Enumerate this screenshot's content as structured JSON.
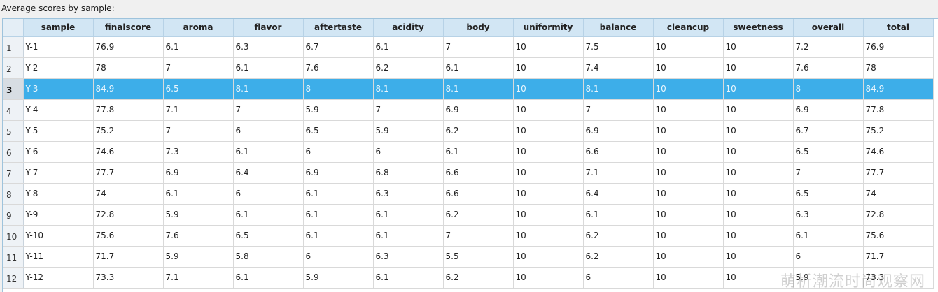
{
  "caption": "Average scores by sample:",
  "colors": {
    "header_bg": "#d2e6f4",
    "selection": "#3daee9",
    "rownum_bg": "#eef2f6"
  },
  "table": {
    "columns": [
      "sample",
      "finalscore",
      "aroma",
      "flavor",
      "aftertaste",
      "acidity",
      "body",
      "uniformity",
      "balance",
      "cleancup",
      "sweetness",
      "overall",
      "total"
    ],
    "selected_row": 3,
    "rows": [
      {
        "num": "1",
        "cells": [
          "Y-1",
          "76.9",
          "6.1",
          "6.3",
          "6.7",
          "6.1",
          "7",
          "10",
          "7.5",
          "10",
          "10",
          "7.2",
          "76.9"
        ]
      },
      {
        "num": "2",
        "cells": [
          "Y-2",
          "78",
          "7",
          "6.1",
          "7.6",
          "6.2",
          "6.1",
          "10",
          "7.4",
          "10",
          "10",
          "7.6",
          "78"
        ]
      },
      {
        "num": "3",
        "cells": [
          "Y-3",
          "84.9",
          "6.5",
          "8.1",
          "8",
          "8.1",
          "8.1",
          "10",
          "8.1",
          "10",
          "10",
          "8",
          "84.9"
        ]
      },
      {
        "num": "4",
        "cells": [
          "Y-4",
          "77.8",
          "7.1",
          "7",
          "5.9",
          "7",
          "6.9",
          "10",
          "7",
          "10",
          "10",
          "6.9",
          "77.8"
        ]
      },
      {
        "num": "5",
        "cells": [
          "Y-5",
          "75.2",
          "7",
          "6",
          "6.5",
          "5.9",
          "6.2",
          "10",
          "6.9",
          "10",
          "10",
          "6.7",
          "75.2"
        ]
      },
      {
        "num": "6",
        "cells": [
          "Y-6",
          "74.6",
          "7.3",
          "6.1",
          "6",
          "6",
          "6.1",
          "10",
          "6.6",
          "10",
          "10",
          "6.5",
          "74.6"
        ]
      },
      {
        "num": "7",
        "cells": [
          "Y-7",
          "77.7",
          "6.9",
          "6.4",
          "6.9",
          "6.8",
          "6.6",
          "10",
          "7.1",
          "10",
          "10",
          "7",
          "77.7"
        ]
      },
      {
        "num": "8",
        "cells": [
          "Y-8",
          "74",
          "6.1",
          "6",
          "6.1",
          "6.3",
          "6.6",
          "10",
          "6.4",
          "10",
          "10",
          "6.5",
          "74"
        ]
      },
      {
        "num": "9",
        "cells": [
          "Y-9",
          "72.8",
          "5.9",
          "6.1",
          "6.1",
          "6.1",
          "6.2",
          "10",
          "6.1",
          "10",
          "10",
          "6.3",
          "72.8"
        ]
      },
      {
        "num": "10",
        "cells": [
          "Y-10",
          "75.6",
          "7.6",
          "6.5",
          "6.1",
          "6.1",
          "7",
          "10",
          "6.2",
          "10",
          "10",
          "6.1",
          "75.6"
        ]
      },
      {
        "num": "11",
        "cells": [
          "Y-11",
          "71.7",
          "5.9",
          "5.8",
          "6",
          "6.3",
          "5.5",
          "10",
          "6.2",
          "10",
          "10",
          "6",
          "71.7"
        ]
      },
      {
        "num": "12",
        "cells": [
          "Y-12",
          "73.3",
          "7.1",
          "6.1",
          "5.9",
          "6.1",
          "6.2",
          "10",
          "6",
          "10",
          "10",
          "5.9",
          "73.3"
        ]
      }
    ]
  },
  "watermark": "萌析潮流时尚观察网"
}
